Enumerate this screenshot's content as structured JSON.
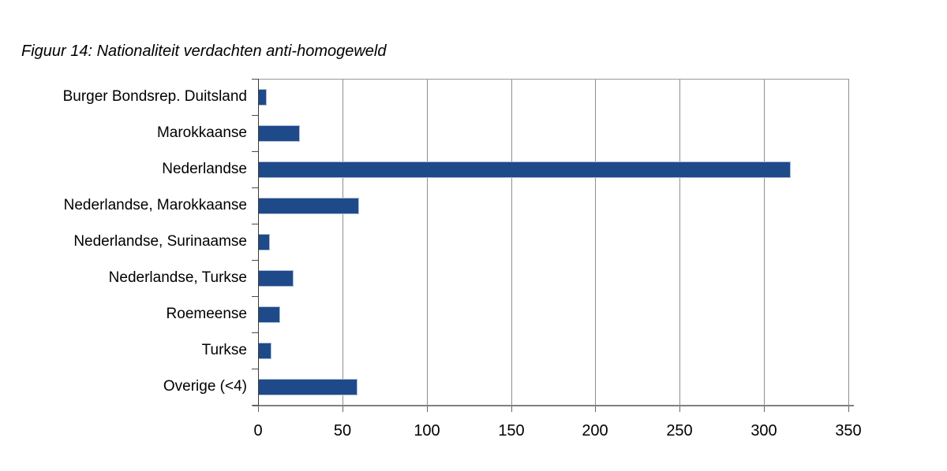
{
  "figure": {
    "title": "Figuur 14: Nationaliteit verdachten anti-homogeweld"
  },
  "chart_data": {
    "type": "bar",
    "orientation": "horizontal",
    "title": "Figuur 14: Nationaliteit verdachten anti-homogeweld",
    "categories": [
      "Burger Bondsrep. Duitsland",
      "Marokkaanse",
      "Nederlandse",
      "Nederlandse, Marokkaanse",
      "Nederlandse, Surinaamse",
      "Nederlandse, Turkse",
      "Roemeense",
      "Turkse",
      "Overige (<4)"
    ],
    "values": [
      5,
      25,
      316,
      60,
      7,
      21,
      13,
      8,
      59
    ],
    "xlabel": "",
    "ylabel": "",
    "xlim": [
      0,
      350
    ],
    "xticks": [
      0,
      50,
      100,
      150,
      200,
      250,
      300,
      350
    ],
    "grid": "vertical-only",
    "legend": "none",
    "colors": {
      "bar_fill": "#1f4a8a",
      "bar_border": "#aebdd6",
      "gridline": "#8f8f8f",
      "plot_border": "#999999",
      "value_axis": "#808080",
      "category_axis": "#3a3a3a",
      "text": "#000000",
      "background": "#ffffff"
    }
  }
}
